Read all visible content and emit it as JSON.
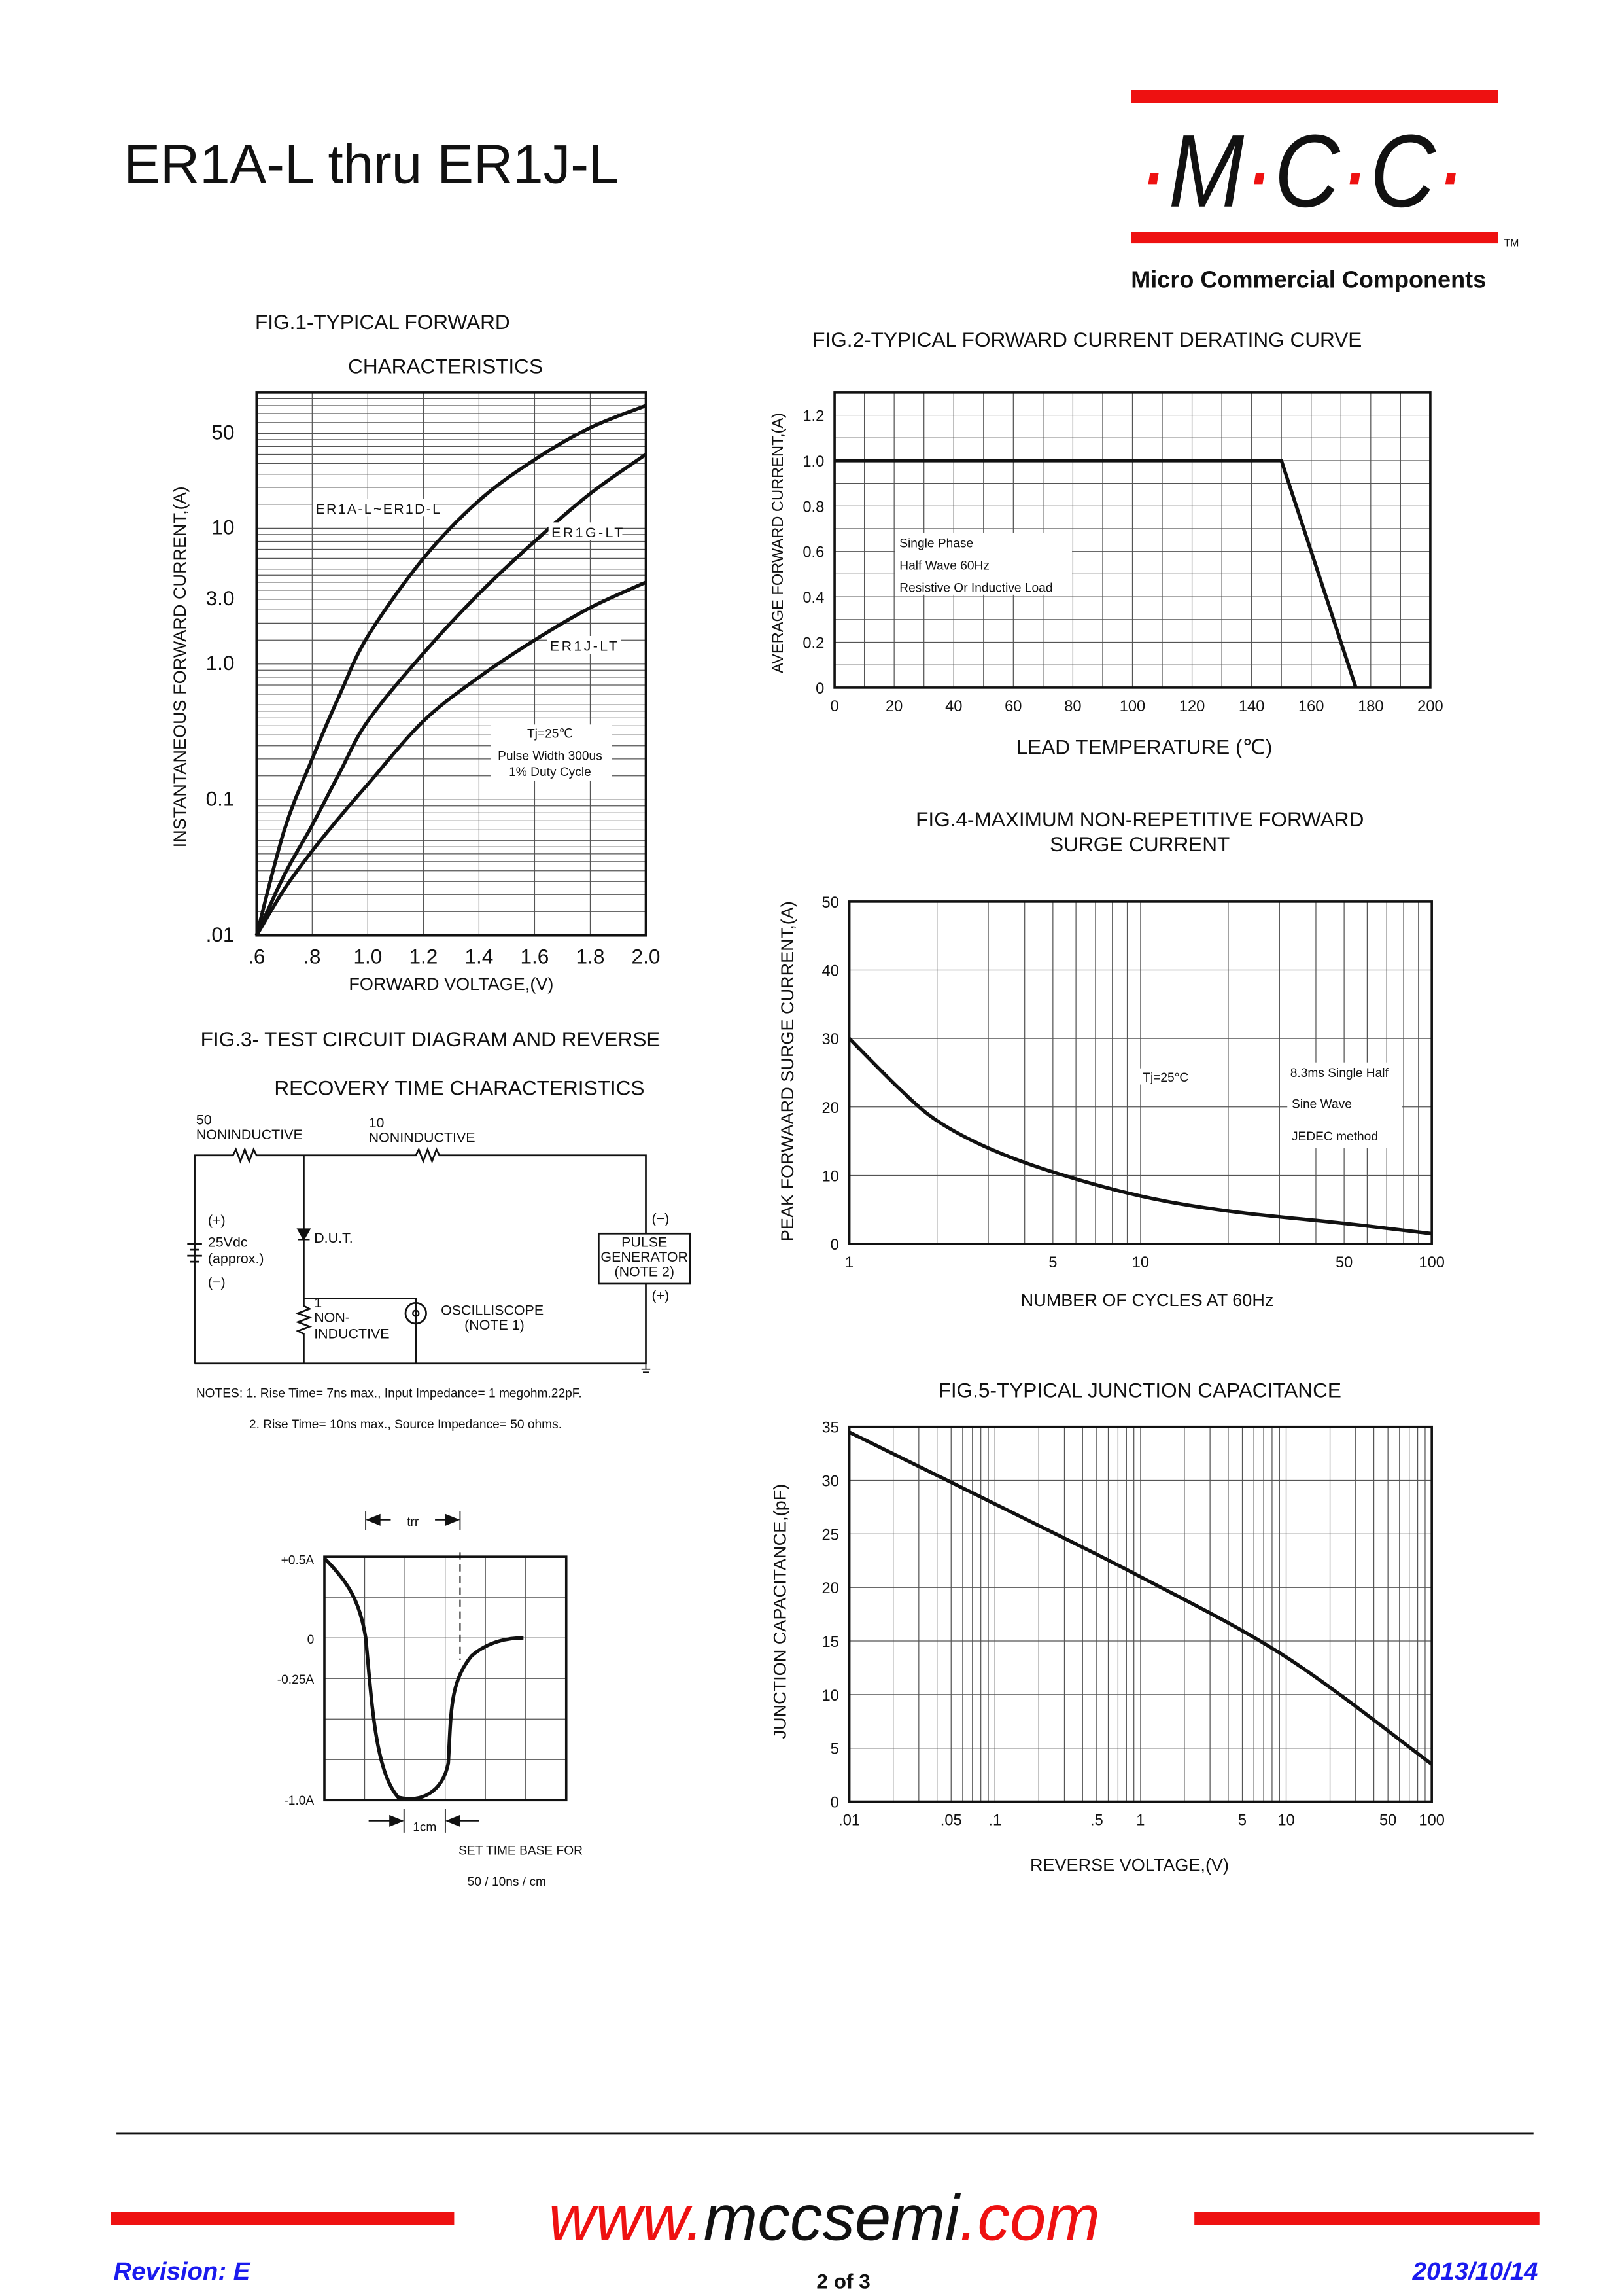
{
  "header": {
    "title": "ER1A-L thru ER1J-L",
    "logo_text": "·M·C·C·",
    "trademark": "TM",
    "company": "Micro Commercial Components",
    "brand_red": "#ee1111"
  },
  "fig3": {
    "title_line1": "FIG.3- TEST CIRCUIT DIAGRAM AND REVERSE",
    "title_line2": "RECOVERY TIME CHARACTERISTICS",
    "r1_value": "50",
    "r1_label": "NONINDUCTIVE",
    "r2_value": "10",
    "r2_label": "NONINDUCTIVE",
    "plus": "(+)",
    "minus": "(−)",
    "source_label": "25Vdc",
    "source_approx": "(approx.)",
    "dut": "D.U.T.",
    "r3_value": "1",
    "r3_label1": "NON-",
    "r3_label2": "INDUCTIVE",
    "scope_label": "OSCILLISCOPE",
    "scope_note": "(NOTE 1)",
    "gen_label1": "PULSE",
    "gen_label2": "GENERATOR",
    "gen_note": "(NOTE 2)",
    "gen_minus": "(−)",
    "gen_plus": "(+)",
    "note1": "NOTES: 1. Rise Time= 7ns max., Input Impedance= 1 megohm.22pF.",
    "note2": "2. Rise Time= 10ns max., Source Impedance= 50 ohms.",
    "wave": {
      "trr": "trr",
      "y_labels": [
        "+0.5A",
        "0",
        "-0.25A",
        "-1.0A"
      ],
      "cm": "1cm",
      "timebase1": "SET TIME BASE FOR",
      "timebase2": "50 / 10ns / cm"
    }
  },
  "chart_data": [
    {
      "id": "fig1",
      "type": "line",
      "title": "FIG.1-TYPICAL FORWARD",
      "title2": "CHARACTERISTICS",
      "xlabel": "FORWARD VOLTAGE,(V)",
      "ylabel": "INSTANTANEOUS FORWARD CURRENT,(A)",
      "xscale": "linear",
      "yscale": "log",
      "xlim": [
        0.6,
        2.0
      ],
      "ylim": [
        0.01,
        100
      ],
      "xticks": [
        0.6,
        0.8,
        1.0,
        1.2,
        1.4,
        1.6,
        1.8,
        2.0
      ],
      "xtick_labels": [
        ".6",
        ".8",
        "1.0",
        "1.2",
        "1.4",
        "1.6",
        "1.8",
        "2.0"
      ],
      "yticks": [
        0.01,
        0.1,
        1,
        3,
        10,
        50
      ],
      "ytick_labels": [
        ".01",
        "0.1",
        "1.0",
        "3.0",
        "10",
        "50"
      ],
      "grid": true,
      "series": [
        {
          "name": "ER1A-L~ER1D-L",
          "x": [
            0.6,
            0.7,
            0.8,
            0.9,
            1.0,
            1.2,
            1.4,
            1.6,
            1.8,
            2.0
          ],
          "y": [
            0.01,
            0.06,
            0.2,
            0.6,
            1.6,
            6,
            16,
            32,
            55,
            80
          ]
        },
        {
          "name": "ER1G-LT",
          "x": [
            0.6,
            0.7,
            0.8,
            0.9,
            1.0,
            1.2,
            1.4,
            1.6,
            1.8,
            2.0
          ],
          "y": [
            0.01,
            0.028,
            0.065,
            0.16,
            0.38,
            1.2,
            3.3,
            8,
            18,
            35
          ]
        },
        {
          "name": "ER1J-LT",
          "x": [
            0.6,
            0.7,
            0.8,
            0.9,
            1.0,
            1.2,
            1.4,
            1.6,
            1.8,
            2.0
          ],
          "y": [
            0.01,
            0.022,
            0.042,
            0.075,
            0.13,
            0.38,
            0.8,
            1.5,
            2.6,
            4
          ]
        }
      ],
      "annotations": [
        "Tj=25℃",
        "Pulse Width 300us",
        "1% Duty Cycle"
      ]
    },
    {
      "id": "fig2",
      "type": "line",
      "title": "FIG.2-TYPICAL FORWARD CURRENT DERATING CURVE",
      "xlabel": "LEAD TEMPERATURE (℃)",
      "ylabel": "AVERAGE FORWARD CURRENT,(A)",
      "xscale": "linear",
      "yscale": "linear",
      "xlim": [
        0,
        200
      ],
      "ylim": [
        0,
        1.3
      ],
      "xticks": [
        0,
        20,
        40,
        60,
        80,
        100,
        120,
        140,
        160,
        180,
        200
      ],
      "xtick_labels": [
        "0",
        "20",
        "40",
        "60",
        "80",
        "100",
        "120",
        "140",
        "160",
        "180",
        "200"
      ],
      "yticks": [
        0,
        0.2,
        0.4,
        0.6,
        0.8,
        1.0,
        1.2
      ],
      "ytick_labels": [
        "0",
        "0.2",
        "0.4",
        "0.6",
        "0.8",
        "1.0",
        "1.2"
      ],
      "grid": true,
      "series": [
        {
          "name": "derating",
          "x": [
            0,
            150,
            175
          ],
          "y": [
            1.0,
            1.0,
            0
          ]
        }
      ],
      "annotations": [
        "Single Phase",
        "Half Wave 60Hz",
        "Resistive Or Inductive Load"
      ]
    },
    {
      "id": "fig4",
      "type": "line",
      "title": "FIG.4-MAXIMUM NON-REPETITIVE FORWARD",
      "title2": "SURGE CURRENT",
      "xlabel": "NUMBER OF CYCLES AT 60Hz",
      "ylabel": "PEAK FORWAARD SURGE CURRENT,(A)",
      "xscale": "log",
      "yscale": "linear",
      "xlim": [
        1,
        100
      ],
      "ylim": [
        0,
        50
      ],
      "xticks": [
        1,
        5,
        10,
        50,
        100
      ],
      "xtick_labels": [
        "1",
        "5",
        "10",
        "50",
        "100"
      ],
      "yticks": [
        0,
        10,
        20,
        30,
        40,
        50
      ],
      "ytick_labels": [
        "0",
        "10",
        "20",
        "30",
        "40",
        "50"
      ],
      "grid": true,
      "series": [
        {
          "name": "surge",
          "x": [
            1,
            1.5,
            2,
            3,
            5,
            10,
            20,
            50,
            100
          ],
          "y": [
            30,
            22.5,
            18,
            14,
            10.5,
            7,
            4.8,
            3,
            1.5
          ]
        }
      ],
      "annotations": [
        "Tj=25°C",
        "8.3ms Single Half",
        "Sine Wave",
        "JEDEC method"
      ]
    },
    {
      "id": "fig5",
      "type": "line",
      "title": "FIG.5-TYPICAL JUNCTION CAPACITANCE",
      "xlabel": "REVERSE VOLTAGE,(V)",
      "ylabel": "JUNCTION CAPACITANCE,(pF)",
      "xscale": "log",
      "yscale": "linear",
      "xlim": [
        0.01,
        100
      ],
      "ylim": [
        0,
        35
      ],
      "xticks": [
        0.01,
        0.05,
        0.1,
        0.5,
        1,
        5,
        10,
        50,
        100
      ],
      "xtick_labels": [
        ".01",
        ".05",
        ".1",
        ".5",
        "1",
        "5",
        "10",
        "50",
        "100"
      ],
      "yticks": [
        0,
        5,
        10,
        15,
        20,
        25,
        30,
        35
      ],
      "ytick_labels": [
        "0",
        "5",
        "10",
        "15",
        "20",
        "25",
        "30",
        "35"
      ],
      "grid": true,
      "series": [
        {
          "name": "capacitance",
          "x": [
            0.01,
            0.1,
            1,
            10,
            100
          ],
          "y": [
            34.5,
            27.8,
            21,
            13.5,
            3.5
          ]
        }
      ]
    }
  ],
  "footer": {
    "url_prefix": "www.",
    "url_main": "mccsemi",
    "url_suffix": ".com",
    "revision": "Revision: E",
    "page": "2 of 3",
    "date": "2013/10/14",
    "text_blue": "#1a1aee"
  }
}
